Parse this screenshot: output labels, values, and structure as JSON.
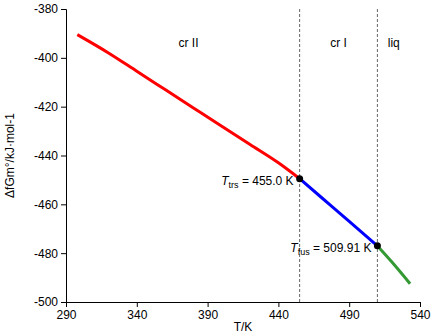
{
  "chart_data": {
    "type": "line",
    "xlabel": "T/K",
    "ylabel": "ΔfGm°/kJ·mol-1",
    "xlim": [
      290,
      540
    ],
    "xticks": [
      290,
      340,
      390,
      440,
      490,
      540
    ],
    "ylim": [
      -500,
      -380
    ],
    "yticks": [
      -500,
      -480,
      -460,
      -440,
      -420,
      -400,
      -380
    ],
    "series": [
      {
        "name": "cr II",
        "color": "#ff0000",
        "x": [
          298,
          320,
          340,
          360,
          380,
          400,
          420,
          440,
          455
        ],
        "values": [
          -390.5,
          -398,
          -405.5,
          -413,
          -420.5,
          -428,
          -435.5,
          -443,
          -449.5
        ]
      },
      {
        "name": "cr I",
        "color": "#0000ff",
        "x": [
          455,
          470,
          490,
          509.91
        ],
        "values": [
          -449.5,
          -457,
          -467,
          -477
        ]
      },
      {
        "name": "liq",
        "color": "#339933",
        "x": [
          509.91,
          520,
          533
        ],
        "values": [
          -477,
          -483.5,
          -492.5
        ]
      }
    ],
    "annotations": [
      {
        "x": 455.0,
        "y": -449.5,
        "label_main": "T",
        "label_sub": "trs",
        "label_rest": " = 455.0 K"
      },
      {
        "x": 509.91,
        "y": -477,
        "label_main": "T",
        "label_sub": "fus",
        "label_rest": " = 509.91 K"
      }
    ]
  }
}
